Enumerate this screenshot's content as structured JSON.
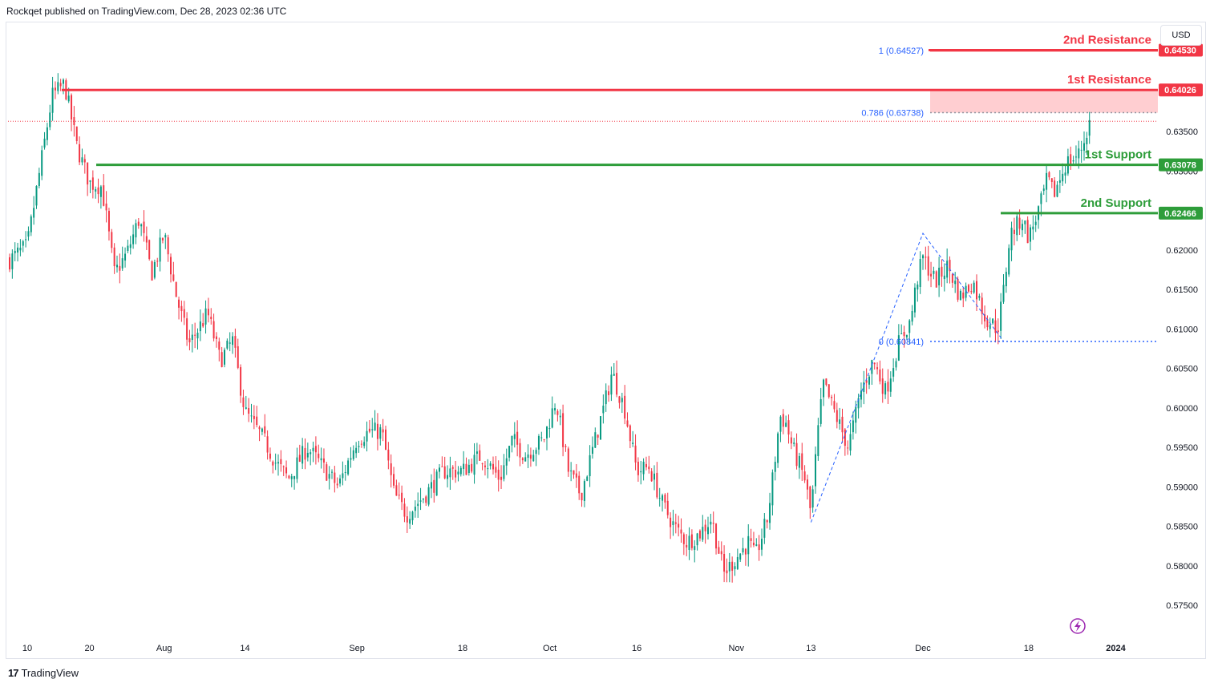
{
  "header": {
    "publisher": "Rockqet published on TradingView.com, Dec 28, 2023 02:36 UTC"
  },
  "footer": {
    "logo_text": "TradingView"
  },
  "currency_button": "USD",
  "colors": {
    "up": "#089981",
    "down": "#f23645",
    "resistance": "#f23645",
    "support": "#2e9d3a",
    "fib": "#2962ff",
    "zone": "#ffc9cc",
    "flash": "#9c27b0"
  },
  "chart_data": {
    "type": "candlestick",
    "symbol_currency": "USD",
    "x_tick_labels": [
      "10",
      "20",
      "Aug",
      "14",
      "Sep",
      "18",
      "Oct",
      "16",
      "Nov",
      "13",
      "Dec",
      "18",
      "2024"
    ],
    "y_tick_labels": [
      "0.63500",
      "0.63000",
      "0.62000",
      "0.61500",
      "0.61000",
      "0.60500",
      "0.60000",
      "0.59500",
      "0.59000",
      "0.58500",
      "0.58000",
      "0.57500"
    ],
    "ylim": [
      0.5735,
      0.6525
    ],
    "levels": [
      {
        "label": "2nd Resistance",
        "value": 0.6453,
        "value_label": "0.64530",
        "kind": "resistance"
      },
      {
        "label": "1st Resistance",
        "value": 0.64026,
        "value_label": "0.64026",
        "kind": "resistance"
      },
      {
        "label": "1st Support",
        "value": 0.63078,
        "value_label": "0.63078",
        "kind": "support"
      },
      {
        "label": "2nd Support",
        "value": 0.62466,
        "value_label": "0.62466",
        "kind": "support"
      }
    ],
    "fib_levels": [
      {
        "label": "1 (0.64527)",
        "value": 0.64527
      },
      {
        "label": "0.786 (0.63738)",
        "value": 0.63738
      },
      {
        "label": "0 (0.60841)",
        "value": 0.60841
      }
    ],
    "resistance_zone": [
      0.63738,
      0.64026
    ],
    "last_price_line": 0.6363,
    "swing_path": [
      {
        "date": "Nov 13",
        "price": 0.5855
      },
      {
        "date": "Dec 1",
        "price": 0.6221
      },
      {
        "date": "Dec 14",
        "price": 0.6084
      }
    ],
    "price_path": [
      {
        "date": "Jul 3",
        "price": 0.6195
      },
      {
        "date": "Jul 6",
        "price": 0.618
      },
      {
        "date": "Jul 10",
        "price": 0.6205
      },
      {
        "date": "Jul 12",
        "price": 0.63
      },
      {
        "date": "Jul 14",
        "price": 0.6395
      },
      {
        "date": "Jul 16",
        "price": 0.641
      },
      {
        "date": "Jul 18",
        "price": 0.633
      },
      {
        "date": "Jul 20",
        "price": 0.6285
      },
      {
        "date": "Jul 22",
        "price": 0.628
      },
      {
        "date": "Jul 24",
        "price": 0.617
      },
      {
        "date": "Jul 26",
        "price": 0.6195
      },
      {
        "date": "Jul 28",
        "price": 0.624
      },
      {
        "date": "Jul 30",
        "price": 0.617
      },
      {
        "date": "Aug 1",
        "price": 0.622
      },
      {
        "date": "Aug 3",
        "price": 0.614
      },
      {
        "date": "Aug 5",
        "price": 0.608
      },
      {
        "date": "Aug 8",
        "price": 0.612
      },
      {
        "date": "Aug 10",
        "price": 0.606
      },
      {
        "date": "Aug 12",
        "price": 0.6085
      },
      {
        "date": "Aug 14",
        "price": 0.5995
      },
      {
        "date": "Aug 17",
        "price": 0.596
      },
      {
        "date": "Aug 19",
        "price": 0.593
      },
      {
        "date": "Aug 21",
        "price": 0.591
      },
      {
        "date": "Aug 24",
        "price": 0.595
      },
      {
        "date": "Aug 27",
        "price": 0.592
      },
      {
        "date": "Aug 29",
        "price": 0.59
      },
      {
        "date": "Sep 1",
        "price": 0.596
      },
      {
        "date": "Sep 3",
        "price": 0.597
      },
      {
        "date": "Sep 5",
        "price": 0.597
      },
      {
        "date": "Sep 7",
        "price": 0.589
      },
      {
        "date": "Sep 9",
        "price": 0.5865
      },
      {
        "date": "Sep 12",
        "price": 0.589
      },
      {
        "date": "Sep 15",
        "price": 0.592
      },
      {
        "date": "Sep 18",
        "price": 0.592
      },
      {
        "date": "Sep 21",
        "price": 0.594
      },
      {
        "date": "Sep 24",
        "price": 0.591
      },
      {
        "date": "Sep 26",
        "price": 0.596
      },
      {
        "date": "Sep 28",
        "price": 0.594
      },
      {
        "date": "Oct 1",
        "price": 0.596
      },
      {
        "date": "Oct 3",
        "price": 0.601
      },
      {
        "date": "Oct 5",
        "price": 0.592
      },
      {
        "date": "Oct 7",
        "price": 0.589
      },
      {
        "date": "Oct 9",
        "price": 0.595
      },
      {
        "date": "Oct 11",
        "price": 0.601
      },
      {
        "date": "Oct 12",
        "price": 0.6045
      },
      {
        "date": "Oct 14",
        "price": 0.6
      },
      {
        "date": "Oct 16",
        "price": 0.592
      },
      {
        "date": "Oct 18",
        "price": 0.5925
      },
      {
        "date": "Oct 20",
        "price": 0.588
      },
      {
        "date": "Oct 22",
        "price": 0.585
      },
      {
        "date": "Oct 24",
        "price": 0.583
      },
      {
        "date": "Oct 26",
        "price": 0.584
      },
      {
        "date": "Oct 28",
        "price": 0.586
      },
      {
        "date": "Oct 30",
        "price": 0.579
      },
      {
        "date": "Nov 1",
        "price": 0.581
      },
      {
        "date": "Nov 3",
        "price": 0.583
      },
      {
        "date": "Nov 4",
        "price": 0.581
      },
      {
        "date": "Nov 6",
        "price": 0.586
      },
      {
        "date": "Nov 7",
        "price": 0.592
      },
      {
        "date": "Nov 8",
        "price": 0.599
      },
      {
        "date": "Nov 9",
        "price": 0.598
      },
      {
        "date": "Nov 10",
        "price": 0.595
      },
      {
        "date": "Nov 12",
        "price": 0.591
      },
      {
        "date": "Nov 13",
        "price": 0.5865
      },
      {
        "date": "Nov 14",
        "price": 0.596
      },
      {
        "date": "Nov 15",
        "price": 0.603
      },
      {
        "date": "Nov 17",
        "price": 0.599
      },
      {
        "date": "Nov 19",
        "price": 0.595
      },
      {
        "date": "Nov 21",
        "price": 0.602
      },
      {
        "date": "Nov 23",
        "price": 0.606
      },
      {
        "date": "Nov 25",
        "price": 0.602
      },
      {
        "date": "Nov 27",
        "price": 0.608
      },
      {
        "date": "Nov 29",
        "price": 0.611
      },
      {
        "date": "Nov 30",
        "price": 0.616
      },
      {
        "date": "Dec 1",
        "price": 0.619
      },
      {
        "date": "Dec 3",
        "price": 0.616
      },
      {
        "date": "Dec 5",
        "price": 0.618
      },
      {
        "date": "Dec 7",
        "price": 0.614
      },
      {
        "date": "Dec 9",
        "price": 0.616
      },
      {
        "date": "Dec 11",
        "price": 0.6115
      },
      {
        "date": "Dec 13",
        "price": 0.61
      },
      {
        "date": "Dec 14",
        "price": 0.615
      },
      {
        "date": "Dec 15",
        "price": 0.622
      },
      {
        "date": "Dec 17",
        "price": 0.624
      },
      {
        "date": "Dec 18",
        "price": 0.6215
      },
      {
        "date": "Dec 20",
        "price": 0.626
      },
      {
        "date": "Dec 21",
        "price": 0.629
      },
      {
        "date": "Dec 22",
        "price": 0.627
      },
      {
        "date": "Dec 24",
        "price": 0.631
      },
      {
        "date": "Dec 26",
        "price": 0.632
      },
      {
        "date": "Dec 27",
        "price": 0.634
      },
      {
        "date": "Dec 28",
        "price": 0.6368
      }
    ]
  }
}
